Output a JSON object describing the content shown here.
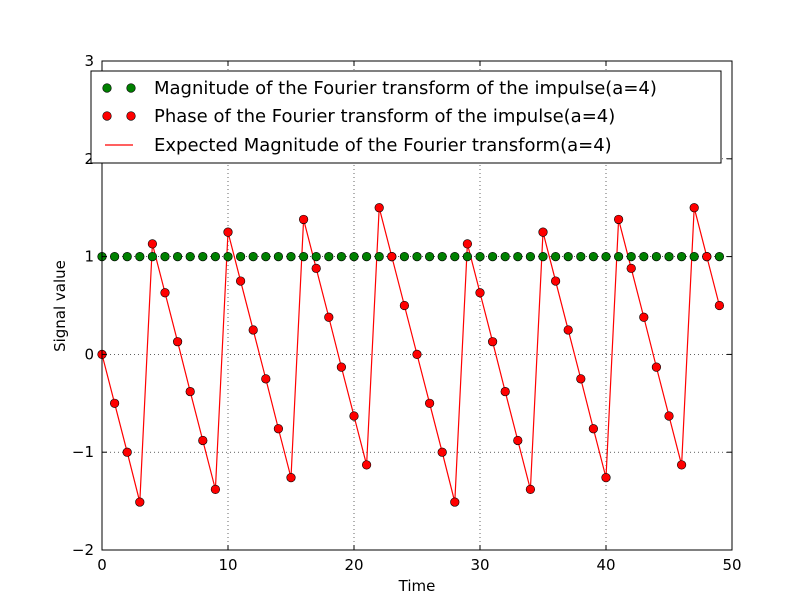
{
  "chart_data": {
    "type": "line",
    "title": "",
    "xlabel": "Time",
    "ylabel": "Signal value",
    "xlim": [
      0,
      50
    ],
    "ylim": [
      -2,
      3
    ],
    "grid": true,
    "legend_placement": "top",
    "x_ticks": [
      "0",
      "10",
      "20",
      "30",
      "40",
      "50"
    ],
    "y_ticks": [
      "−2",
      "−1",
      "0",
      "1",
      "2",
      "3"
    ],
    "x_tick_values": [
      0,
      10,
      20,
      30,
      40,
      50
    ],
    "y_tick_values": [
      -2,
      -1,
      0,
      1,
      2,
      3
    ],
    "series": [
      {
        "name": "Magnitude of the Fourier transform of the impulse(a=4)",
        "style": "markers",
        "color": "#008000",
        "x": [
          0,
          1,
          2,
          3,
          4,
          5,
          6,
          7,
          8,
          9,
          10,
          11,
          12,
          13,
          14,
          15,
          16,
          17,
          18,
          19,
          20,
          21,
          22,
          23,
          24,
          25,
          26,
          27,
          28,
          29,
          30,
          31,
          32,
          33,
          34,
          35,
          36,
          37,
          38,
          39,
          40,
          41,
          42,
          43,
          44,
          45,
          46,
          47,
          48,
          49
        ],
        "values": [
          1,
          1,
          1,
          1,
          1,
          1,
          1,
          1,
          1,
          1,
          1,
          1,
          1,
          1,
          1,
          1,
          1,
          1,
          1,
          1,
          1,
          1,
          1,
          1,
          1,
          1,
          1,
          1,
          1,
          1,
          1,
          1,
          1,
          1,
          1,
          1,
          1,
          1,
          1,
          1,
          1,
          1,
          1,
          1,
          1,
          1,
          1,
          1,
          1,
          1
        ]
      },
      {
        "name": "Phase of the Fourier transform of the impulse(a=4)",
        "style": "markers",
        "color": "#ff0000",
        "x": [
          0,
          1,
          2,
          3,
          4,
          5,
          6,
          7,
          8,
          9,
          10,
          11,
          12,
          13,
          14,
          15,
          16,
          17,
          18,
          19,
          20,
          21,
          22,
          23,
          24,
          25,
          26,
          27,
          28,
          29,
          30,
          31,
          32,
          33,
          34,
          35,
          36,
          37,
          38,
          39,
          40,
          41,
          42,
          43,
          44,
          45,
          46,
          47,
          48,
          49
        ],
        "values": [
          0,
          -0.5,
          -1.0,
          -1.51,
          1.13,
          0.63,
          0.13,
          -0.38,
          -0.88,
          -1.38,
          1.25,
          0.75,
          0.25,
          -0.25,
          -0.76,
          -1.26,
          1.38,
          0.88,
          0.38,
          -0.13,
          -0.63,
          -1.13,
          1.5,
          1.0,
          0.5,
          0.0,
          -0.5,
          -1.0,
          -1.51,
          1.13,
          0.63,
          0.13,
          -0.38,
          -0.88,
          -1.38,
          1.25,
          0.75,
          0.25,
          -0.25,
          -0.76,
          -1.26,
          1.38,
          0.88,
          0.38,
          -0.13,
          -0.63,
          -1.13,
          1.5,
          1.0,
          0.5
        ]
      },
      {
        "name": "Expected Magnitude of the Fourier transform(a=4)",
        "style": "line",
        "color": "#ff0000",
        "x": [
          0,
          1,
          2,
          3,
          4,
          5,
          6,
          7,
          8,
          9,
          10,
          11,
          12,
          13,
          14,
          15,
          16,
          17,
          18,
          19,
          20,
          21,
          22,
          23,
          24,
          25,
          26,
          27,
          28,
          29,
          30,
          31,
          32,
          33,
          34,
          35,
          36,
          37,
          38,
          39,
          40,
          41,
          42,
          43,
          44,
          45,
          46,
          47,
          48,
          49
        ],
        "values": [
          0,
          -0.5,
          -1.0,
          -1.51,
          1.13,
          0.63,
          0.13,
          -0.38,
          -0.88,
          -1.38,
          1.25,
          0.75,
          0.25,
          -0.25,
          -0.76,
          -1.26,
          1.38,
          0.88,
          0.38,
          -0.13,
          -0.63,
          -1.13,
          1.5,
          1.0,
          0.5,
          0.0,
          -0.5,
          -1.0,
          -1.51,
          1.13,
          0.63,
          0.13,
          -0.38,
          -0.88,
          -1.38,
          1.25,
          0.75,
          0.25,
          -0.25,
          -0.76,
          -1.26,
          1.38,
          0.88,
          0.38,
          -0.13,
          -0.63,
          -1.13,
          1.5,
          1.0,
          0.5
        ]
      }
    ]
  }
}
